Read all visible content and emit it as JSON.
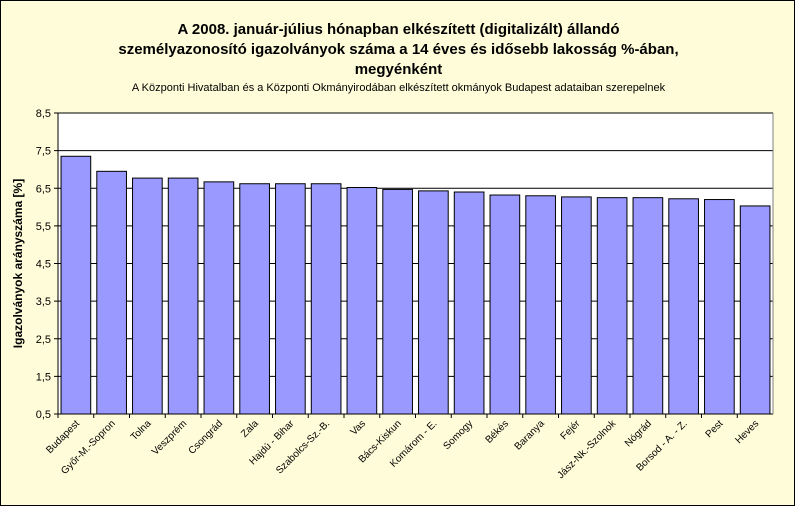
{
  "chart_data": {
    "type": "bar",
    "title_lines": [
      "A 2008. január-július hónapban elkészített (digitalizált) állandó",
      "személyazonosító igazolványok száma a 14 éves és idősebb lakosság %-ában,",
      "megyénként"
    ],
    "subtitle": "A  Központi Hivatalban és a Központi Okmányirodában elkészített  okmányok Budapest adataiban szerepelnek",
    "ylabel": "Igazolványok arányszáma [%]",
    "xlabel": "",
    "ylim": [
      0.5,
      8.5
    ],
    "yticks": [
      "0,5",
      "1,5",
      "2,5",
      "3,5",
      "4,5",
      "5,5",
      "6,5",
      "7,5",
      "8,5"
    ],
    "grid": true,
    "bar_color": "#9999ff",
    "categories": [
      "Budapest",
      "Győr-M.-Sopron",
      "Tolna",
      "Veszprém",
      "Csongrád",
      "Zala",
      "Hajdú - Bihar",
      "Szabolcs-Sz.-B.",
      "Vas",
      "Bács-Kiskun",
      "Komárom - E.",
      "Somogy",
      "Békés",
      "Baranya",
      "Fejér",
      "Jász-Nk.-Szolnok",
      "Nógrád",
      "Borsod - A. - Z.",
      "Pest",
      "Heves"
    ],
    "values": [
      7.35,
      6.95,
      6.77,
      6.77,
      6.67,
      6.62,
      6.62,
      6.62,
      6.52,
      6.47,
      6.43,
      6.4,
      6.32,
      6.3,
      6.27,
      6.25,
      6.25,
      6.22,
      6.2,
      6.03
    ]
  }
}
